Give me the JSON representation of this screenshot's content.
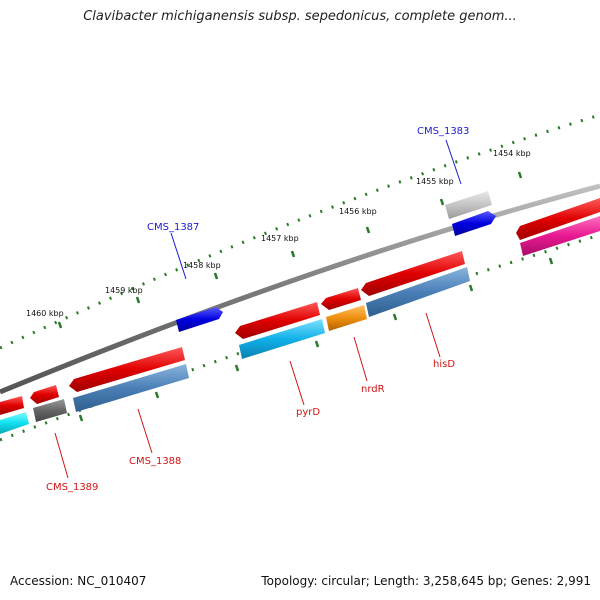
{
  "title": "Clavibacter michiganensis subsp. sepedonicus, complete genom...",
  "footer": {
    "accession": "Accession: NC_010407",
    "summary": "Topology: circular; Length: 3,258,645 bp; Genes: 2,991"
  },
  "ticks": [
    "1454 kbp",
    "1455 kbp",
    "1456 kbp",
    "1457 kbp",
    "1458 kbp",
    "1459 kbp",
    "1460 kbp"
  ],
  "gene_labels": {
    "cms1383": "CMS_1383",
    "cms1387": "CMS_1387",
    "cms1388": "CMS_1388",
    "cms1389": "CMS_1389",
    "pyrd": "pyrD",
    "nrdr": "nrdR",
    "hisd": "hisD"
  },
  "colors": {
    "forward_feature": "#1a1ad0",
    "cds": "#e01010",
    "backbone": "#808080",
    "tick_marks": "#2a7a2a",
    "label_forward": "#1a1ad0",
    "label_reverse": "#d01515"
  }
}
